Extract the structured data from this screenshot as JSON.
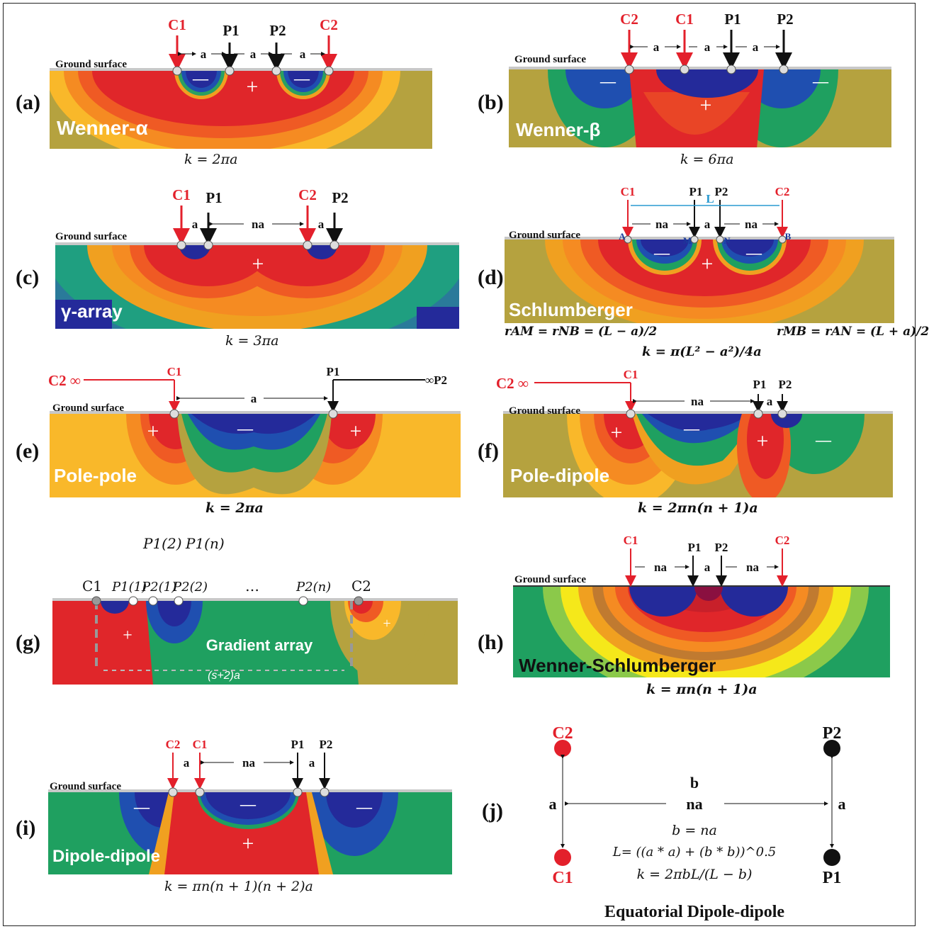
{
  "panels": {
    "a": {
      "label": "(a)",
      "name": "Wenner-α",
      "formula": "k = 2πa",
      "ground": "Ground surface",
      "electrodes": [
        "C1",
        "P1",
        "P2",
        "C2"
      ],
      "spacing": [
        "a",
        "a",
        "a"
      ]
    },
    "b": {
      "label": "(b)",
      "name": "Wenner-β",
      "formula": "k = 6πa",
      "ground": "Ground surface",
      "electrodes": [
        "C2",
        "C1",
        "P1",
        "P2"
      ],
      "spacing": [
        "a",
        "a",
        "a"
      ]
    },
    "c": {
      "label": "(c)",
      "name": "γ-array",
      "formula": "k = 3πa",
      "ground": "Ground surface",
      "electrodes": [
        "C1",
        "P1",
        "C2",
        "P2"
      ],
      "spacing": [
        "a",
        "na",
        "a"
      ]
    },
    "d": {
      "label": "(d)",
      "name": "Schlumberger",
      "ground": "Ground surface",
      "electrodes": [
        "C1",
        "P1",
        "P2",
        "C2"
      ],
      "spacing": [
        "na",
        "a",
        "na"
      ],
      "span": "L",
      "points": [
        "A",
        "M",
        "N",
        "B"
      ],
      "formula_left": "rAM = rNB = (L − a)/2",
      "formula_right": "rMB = rAN = (L + a)/2",
      "formula": "k = π(L² − a²)/4a"
    },
    "e": {
      "label": "(e)",
      "name": "Pole-pole",
      "formula": "k = 2πa",
      "ground": "Ground surface",
      "c2": "C2 ∞",
      "c1": "C1",
      "p1": "P1",
      "p2": "∞P2",
      "spacing": "a"
    },
    "f": {
      "label": "(f)",
      "name": "Pole-dipole",
      "formula": "k = 2πn(n + 1)a",
      "ground": "Ground surface",
      "c2": "C2 ∞",
      "c1": "C1",
      "p1": "P1",
      "p2": "P2",
      "spacing": [
        "na",
        "a"
      ]
    },
    "g": {
      "label": "(g)",
      "name": "Gradient array",
      "span": "(s+2)a",
      "top_labels": [
        "P1(2)",
        "P1(n)"
      ],
      "row_labels": [
        "C1",
        "P1(1)",
        "P2(1)",
        "P2(2)",
        "…",
        "P2(n)",
        "C2"
      ]
    },
    "h": {
      "label": "(h)",
      "name": "Wenner-Schlumberger",
      "formula": "k = πn(n + 1)a",
      "ground": "Ground surface",
      "electrodes": [
        "C1",
        "P1",
        "P2",
        "C2"
      ],
      "spacing": [
        "na",
        "a",
        "na"
      ]
    },
    "i": {
      "label": "(i)",
      "name": "Dipole-dipole",
      "formula": "k = πn(n + 1)(n + 2)a",
      "ground": "Ground surface",
      "electrodes": [
        "C2",
        "C1",
        "P1",
        "P2"
      ],
      "spacing": [
        "a",
        "na",
        "a"
      ]
    },
    "j": {
      "label": "(j)",
      "title": "Equatorial Dipole-dipole",
      "electrodes": [
        "C2",
        "P2",
        "C1",
        "P1"
      ],
      "b": "b",
      "na": "na",
      "a": "a",
      "eq1": "b = na",
      "eq2": "L= ((a * a) + (b * b))^0.5",
      "eq3": "k = 2πbL/(L − b)"
    }
  },
  "colors": {
    "current": "#e3202b",
    "potential": "#111111",
    "ground": "#b5a23f"
  }
}
